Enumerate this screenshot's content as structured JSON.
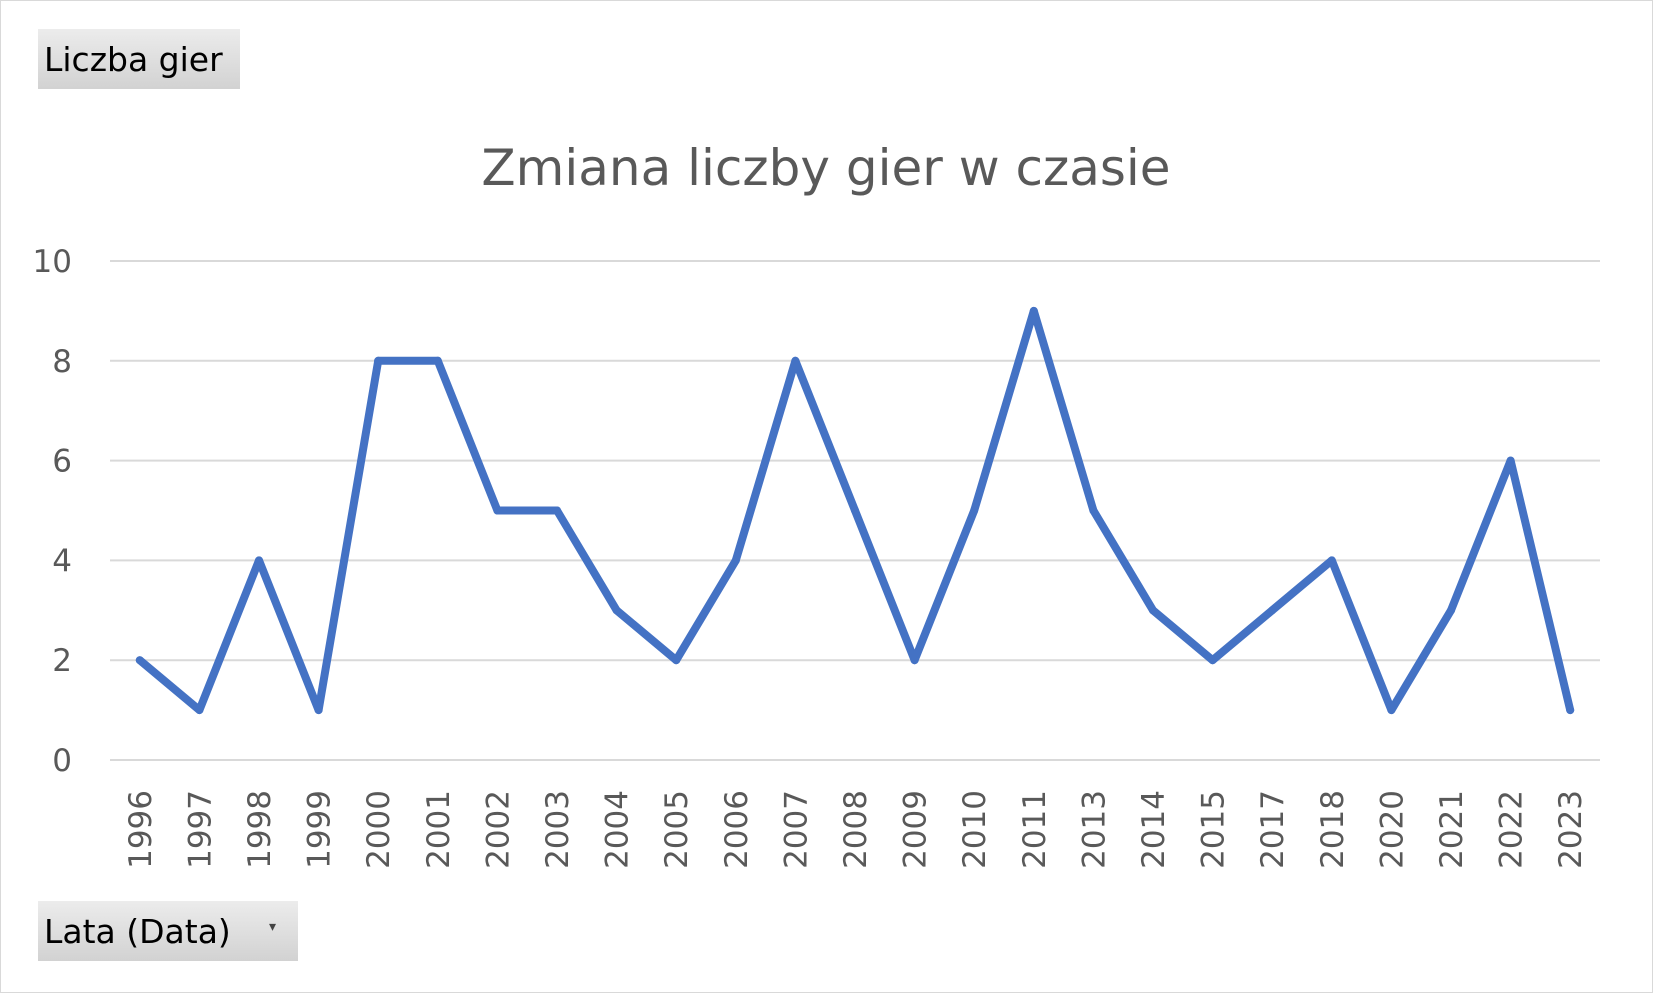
{
  "values_field": {
    "label": "Liczba gier"
  },
  "axis_field": {
    "label": "Lata (Data)",
    "dropdown_icon": "dropdown-arrow-icon"
  },
  "chart_data": {
    "type": "line",
    "title": "Zmiana liczby gier w czasie",
    "xlabel": "",
    "ylabel": "",
    "categories": [
      "1996",
      "1997",
      "1998",
      "1999",
      "2000",
      "2001",
      "2002",
      "2003",
      "2004",
      "2005",
      "2006",
      "2007",
      "2008",
      "2009",
      "2010",
      "2011",
      "2013",
      "2014",
      "2015",
      "2017",
      "2018",
      "2020",
      "2021",
      "2022",
      "2023"
    ],
    "series": [
      {
        "values": [
          2,
          1,
          4,
          1,
          8,
          8,
          5,
          5,
          3,
          2,
          4,
          8,
          5,
          2,
          5,
          9,
          5,
          3,
          2,
          3,
          4,
          1,
          3,
          6,
          1
        ],
        "color": "#4472c4"
      }
    ],
    "ylim": [
      0,
      10
    ],
    "yticks": [
      0,
      2,
      4,
      6,
      8,
      10
    ],
    "grid": true,
    "legend": "none",
    "colors": {
      "line": "#4472c4",
      "grid": "#d9d9d9",
      "text": "#595959"
    }
  }
}
